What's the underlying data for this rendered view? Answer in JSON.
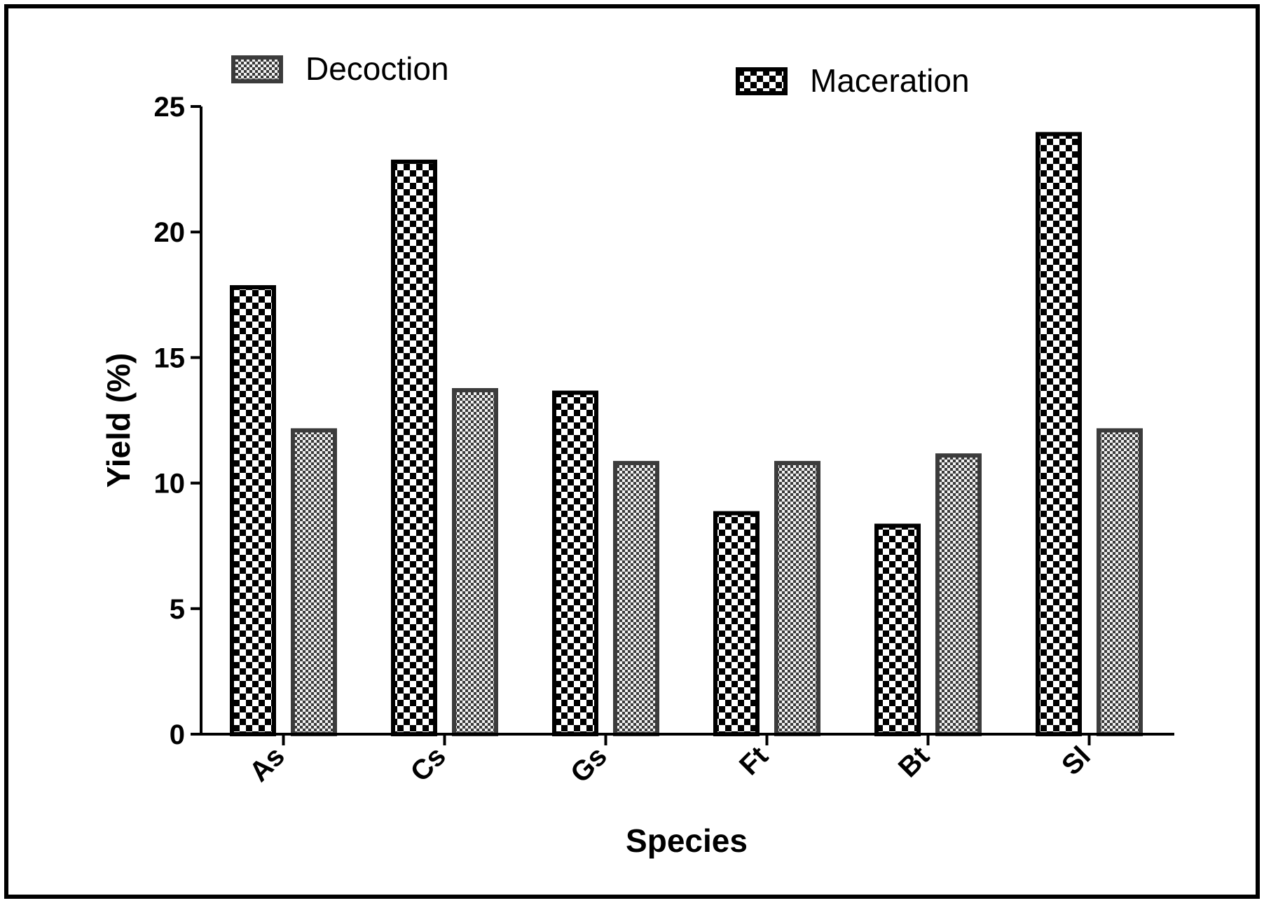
{
  "chart_data": {
    "type": "bar",
    "title": "",
    "xlabel": "Species",
    "ylabel": "Yield (%)",
    "ylim": [
      0,
      25
    ],
    "yticks": [
      "0",
      "5",
      "10",
      "15",
      "20",
      "25"
    ],
    "categories": [
      "As",
      "Cs",
      "Gs",
      "Ft",
      "Bt",
      "Sl"
    ],
    "series": [
      {
        "name": "Maceration",
        "values": [
          17.8,
          22.8,
          13.6,
          8.8,
          8.3,
          23.9
        ]
      },
      {
        "name": "Decoction",
        "values": [
          12.1,
          13.7,
          10.8,
          10.8,
          11.1,
          12.1
        ]
      }
    ],
    "legend": [
      "Decoction",
      "Maceration"
    ],
    "legend_position": "top",
    "grid": false
  },
  "colors": {
    "maceration_fill_dark": "#000000",
    "maceration_fill_light": "#ffffff",
    "decoction_fill_dark": "#3a3a3a",
    "decoction_fill_light": "#f2f2f2",
    "decoction_border": "#3c3c3c"
  }
}
